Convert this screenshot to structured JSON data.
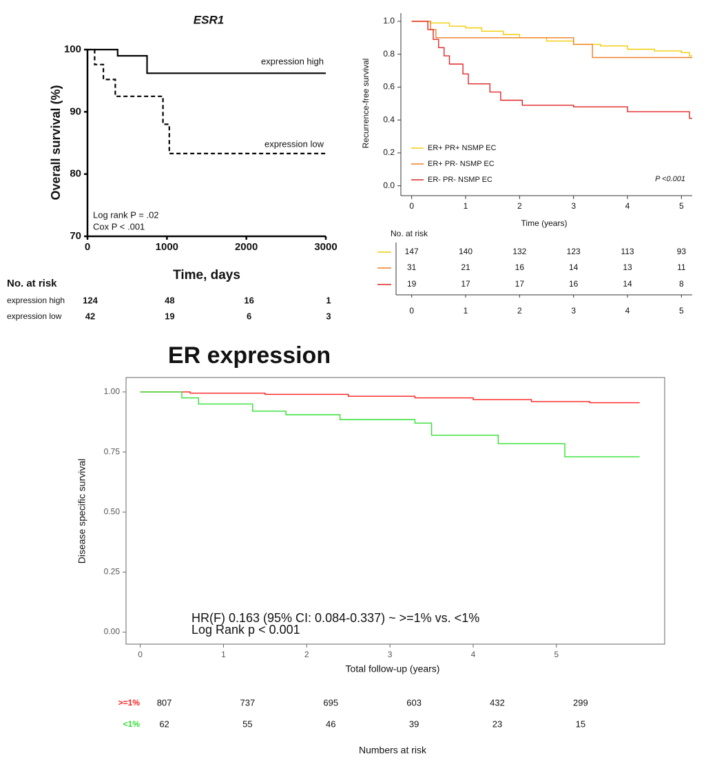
{
  "chart_data": [
    {
      "type": "line",
      "title": "ESR1",
      "xlabel": "Time, days",
      "ylabel": "Overall survival (%)",
      "xlim": [
        0,
        3000
      ],
      "ylim": [
        70,
        100
      ],
      "xticks": [
        0,
        1000,
        2000,
        3000
      ],
      "yticks": [
        70,
        80,
        90,
        100
      ],
      "series": [
        {
          "name": "expression high",
          "color": "#000000",
          "line_style": "solid",
          "x": [
            0,
            380,
            380,
            750,
            750,
            3000
          ],
          "values": [
            100,
            100,
            99,
            99,
            96.2,
            96.2
          ]
        },
        {
          "name": "expression low",
          "color": "#000000",
          "line_style": "dashed",
          "x": [
            0,
            90,
            90,
            200,
            200,
            350,
            350,
            950,
            950,
            1030,
            1030,
            3000
          ],
          "values": [
            100,
            100,
            97.6,
            97.6,
            95.2,
            95.2,
            92.5,
            92.5,
            88,
            88,
            83.3,
            83.3
          ]
        }
      ],
      "annotations": [
        "Log rank P = .02",
        "Cox P < .001"
      ],
      "risk_table": {
        "title": "No. at risk",
        "rows": [
          {
            "name": "expression high",
            "values": [
              124,
              48,
              16,
              1
            ]
          },
          {
            "name": "expression low",
            "values": [
              42,
              19,
              6,
              3
            ]
          }
        ]
      }
    },
    {
      "type": "line",
      "xlabel": "Time (years)",
      "ylabel": "Recurrence-free survival",
      "xlim": [
        -0.2,
        5.2
      ],
      "ylim": [
        -0.06,
        1.05
      ],
      "xticks": [
        0,
        1,
        2,
        3,
        4,
        5
      ],
      "yticks": [
        {
          "value": 0,
          "label": "0.0"
        },
        0.2,
        0.4,
        0.6,
        0.8,
        {
          "value": 1,
          "label": "1.0"
        }
      ],
      "legend": "lower left",
      "series": [
        {
          "name": "ER+ PR+ NSMP EC",
          "color": "#f2cc00",
          "line_style": "solid",
          "x": [
            0,
            0.35,
            0.35,
            0.7,
            0.7,
            1.0,
            1.0,
            1.3,
            1.3,
            1.7,
            1.7,
            2.0,
            2.0,
            2.5,
            2.5,
            3.0,
            3.0,
            3.5,
            3.5,
            4.0,
            4.0,
            4.5,
            4.5,
            5.0,
            5.0,
            5.15,
            5.15,
            5.2
          ],
          "values": [
            1,
            1,
            0.99,
            0.99,
            0.97,
            0.97,
            0.96,
            0.96,
            0.94,
            0.94,
            0.92,
            0.92,
            0.9,
            0.9,
            0.88,
            0.88,
            0.86,
            0.86,
            0.85,
            0.85,
            0.83,
            0.83,
            0.82,
            0.82,
            0.81,
            0.81,
            0.79,
            0.79
          ]
        },
        {
          "name": "ER+ PR- NSMP EC",
          "color": "#ee7d22",
          "line_style": "solid",
          "x": [
            0,
            0.35,
            0.35,
            0.45,
            0.45,
            3.0,
            3.0,
            3.35,
            3.35,
            5.2
          ],
          "values": [
            1,
            1,
            0.95,
            0.95,
            0.9,
            0.9,
            0.86,
            0.86,
            0.78,
            0.78
          ]
        },
        {
          "name": "ER- PR- NSMP EC",
          "color": "#e02424",
          "line_style": "solid",
          "x": [
            0,
            0.3,
            0.3,
            0.4,
            0.4,
            0.5,
            0.5,
            0.6,
            0.6,
            0.7,
            0.7,
            0.95,
            0.95,
            1.05,
            1.05,
            1.45,
            1.45,
            1.65,
            1.65,
            2.05,
            2.05,
            3.0,
            3.0,
            4.0,
            4.0,
            5.15,
            5.15,
            5.2
          ],
          "values": [
            1,
            1,
            0.95,
            0.95,
            0.89,
            0.89,
            0.84,
            0.84,
            0.79,
            0.79,
            0.74,
            0.74,
            0.68,
            0.68,
            0.62,
            0.62,
            0.57,
            0.57,
            0.52,
            0.52,
            0.49,
            0.49,
            0.48,
            0.48,
            0.45,
            0.45,
            0.41,
            0.41
          ]
        }
      ],
      "annotations": [
        "P <0.001"
      ],
      "risk_table": {
        "title": "No. at risk",
        "ticks": [
          0,
          1,
          2,
          3,
          4,
          5
        ],
        "rows": [
          {
            "values": [
              147,
              140,
              132,
              123,
              113,
              93
            ]
          },
          {
            "values": [
              31,
              21,
              16,
              14,
              13,
              11
            ]
          },
          {
            "values": [
              19,
              17,
              17,
              16,
              14,
              8
            ]
          }
        ]
      }
    },
    {
      "type": "line",
      "title": "ER expression",
      "xlabel": "Total follow-up (years)",
      "ylabel": "Disease specific survival",
      "xlim": [
        -0.17,
        6.3
      ],
      "ylim": [
        -0.05,
        1.06
      ],
      "xticks": [
        0,
        1,
        2,
        3,
        4,
        5
      ],
      "yticks": [
        {
          "value": 0,
          "label": "0.00"
        },
        0.25,
        {
          "value": 0.5,
          "label": "0.50"
        },
        0.75,
        {
          "value": 1,
          "label": "1.00"
        }
      ],
      "series": [
        {
          "name": ">=1%",
          "color": "#ff1a1a",
          "line_style": "solid",
          "x": [
            0,
            0.6,
            0.6,
            1.5,
            1.5,
            2.5,
            2.5,
            3.3,
            3.3,
            4.0,
            4.0,
            4.7,
            4.7,
            5.4,
            5.4,
            6.0
          ],
          "values": [
            1,
            1,
            0.995,
            0.995,
            0.99,
            0.99,
            0.982,
            0.982,
            0.975,
            0.975,
            0.968,
            0.968,
            0.96,
            0.96,
            0.955,
            0.955
          ]
        },
        {
          "name": "<1%",
          "color": "#2ee02e",
          "line_style": "solid",
          "x": [
            0,
            0.5,
            0.5,
            0.7,
            0.7,
            1.35,
            1.35,
            1.75,
            1.75,
            2.4,
            2.4,
            3.3,
            3.3,
            3.5,
            3.5,
            4.3,
            4.3,
            5.1,
            5.1,
            6.0
          ],
          "values": [
            1,
            1,
            0.975,
            0.975,
            0.95,
            0.95,
            0.92,
            0.92,
            0.905,
            0.905,
            0.885,
            0.885,
            0.87,
            0.87,
            0.82,
            0.82,
            0.785,
            0.785,
            0.73,
            0.73
          ]
        }
      ],
      "annotations": [
        "HR(F) 0.163 (95% CI: 0.084-0.337) ~ >=1% vs. <1%",
        "Log Rank p < 0.001"
      ],
      "risk_table": {
        "title": "Numbers at risk",
        "rows": [
          {
            "values": [
              807,
              737,
              695,
              603,
              432,
              299
            ]
          },
          {
            "values": [
              62,
              55,
              46,
              39,
              23,
              15
            ]
          }
        ]
      }
    }
  ]
}
